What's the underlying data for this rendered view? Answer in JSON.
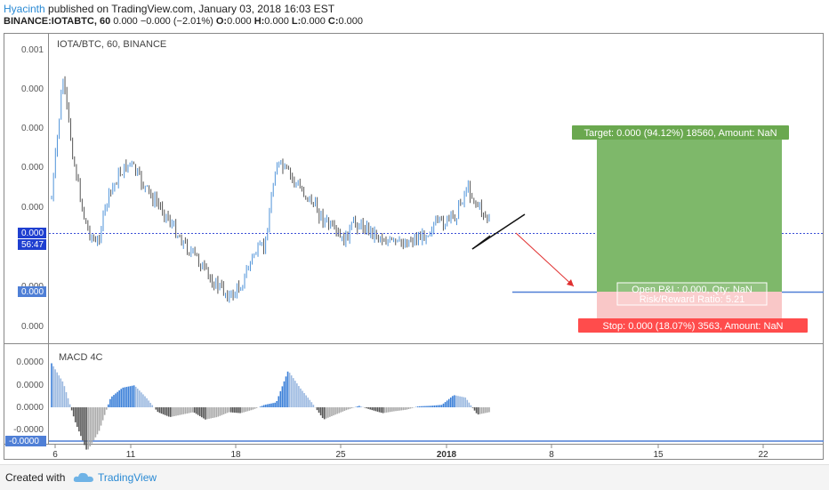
{
  "header": {
    "author": "Hyacinth",
    "published": "published on TradingView.com, January 03, 2018 16:03 EST",
    "symbol_line": "BINANCE:IOTABTC, 60",
    "change": "0.000 −0.000 (−2.01%)",
    "ohlc": {
      "o_label": "O:",
      "o": "0.000",
      "h_label": "H:",
      "h": "0.000",
      "l_label": "L:",
      "l": "0.000",
      "c_label": "C:",
      "c": "0.000"
    }
  },
  "chart_title": "IOTA/BTC, 60, BINANCE",
  "macd_title": "MACD 4C",
  "footer": {
    "created": "Created with",
    "brand": "TradingView"
  },
  "colors": {
    "up": "#4f93d9",
    "down": "#555555",
    "target": "#6aa84f",
    "stop": "#ff4c4c",
    "stop_zone": "#f9c7c7",
    "target_zone": "#7eb86a",
    "price_line": "#3b4fd6",
    "axis_text": "#555"
  },
  "chart_data": [
    {
      "type": "line",
      "title": "IOTA/BTC, 60, BINANCE",
      "series_note": "hourly candles, price axis shows rounded labels",
      "y_ticks": [
        "0.001",
        "0.000",
        "0.000",
        "0.000",
        "0.000",
        "0.000",
        "0.000",
        "0.000"
      ],
      "x_ticks": [
        "6",
        "11",
        "18",
        "25",
        "2018",
        "8",
        "15",
        "22"
      ],
      "price_labels": {
        "last": "0.000",
        "countdown": "56:47",
        "position_line": "0.000"
      },
      "approx_close_series": [
        0.45,
        0.95,
        0.6,
        0.35,
        0.25,
        0.45,
        0.55,
        0.6,
        0.52,
        0.45,
        0.4,
        0.32,
        0.25,
        0.2,
        0.12,
        0.08,
        0.04,
        0.1,
        0.22,
        0.25,
        0.6,
        0.56,
        0.5,
        0.45,
        0.38,
        0.32,
        0.27,
        0.35,
        0.33,
        0.3,
        0.27,
        0.26,
        0.28,
        0.29,
        0.34,
        0.35,
        0.38,
        0.5,
        0.42,
        0.36
      ],
      "position": {
        "target_label": "Target: 0.000 (94.12%) 18560, Amount: NaN",
        "stop_label": "Stop: 0.000 (18.07%) 3563, Amount: NaN",
        "pnl_label": "Open P&L: 0.000, Qty: NaN",
        "rr_label": "Risk/Reward Ratio: 5.21",
        "target_pct": 94.12,
        "stop_pct": 18.07,
        "rr": 5.21
      }
    },
    {
      "type": "bar",
      "title": "MACD 4C",
      "y_ticks": [
        "0.0000",
        "0.0000",
        "0.0000",
        "-0.0000",
        "-0.0000"
      ],
      "approx_histogram": [
        0.9,
        0.5,
        -0.3,
        -0.9,
        -0.5,
        0.2,
        0.4,
        0.45,
        0.2,
        -0.1,
        -0.2,
        -0.15,
        -0.1,
        -0.25,
        -0.2,
        -0.1,
        -0.12,
        -0.05,
        0.05,
        0.1,
        0.75,
        0.4,
        0.1,
        -0.25,
        -0.15,
        -0.05,
        0.03,
        -0.05,
        -0.12,
        -0.08,
        -0.05,
        0.02,
        0.03,
        0.05,
        0.25,
        0.2,
        -0.15,
        -0.1
      ]
    }
  ]
}
